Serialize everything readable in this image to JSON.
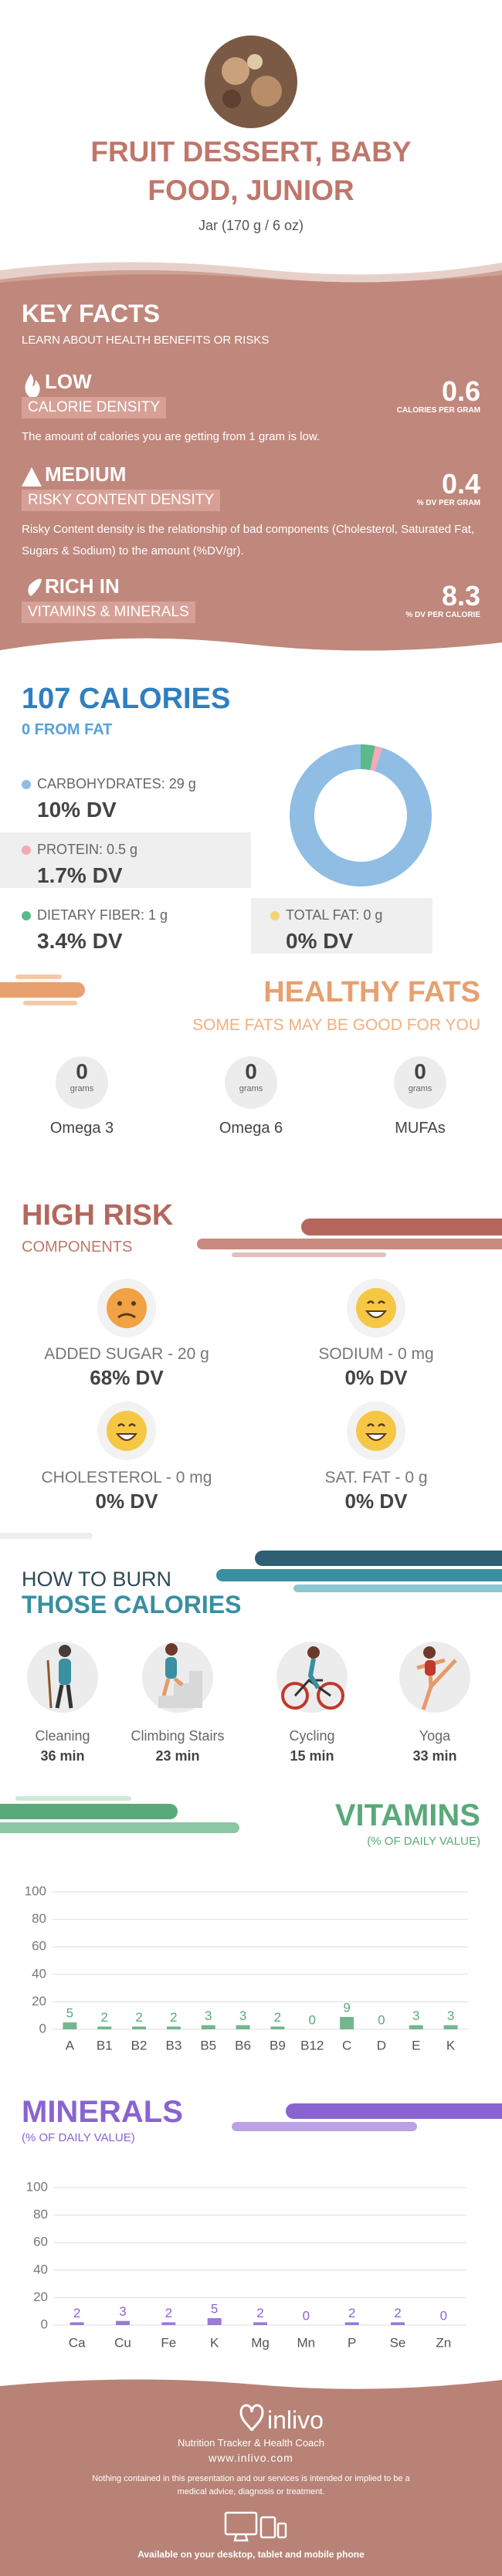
{
  "header": {
    "title": "FRUIT DESSERT, BABY FOOD, JUNIOR",
    "subtitle": "Jar (170 g / 6 oz)"
  },
  "key_facts": {
    "title": "KEY FACTS",
    "subtitle": "LEARN ABOUT HEALTH BENEFITS OR RISKS",
    "items": [
      {
        "level": "LOW",
        "label": "CALORIE DENSITY",
        "value": 0.6,
        "unit": "CALORIES PER GRAM",
        "description": "The amount of calories you are getting from 1 gram is low."
      },
      {
        "level": "MEDIUM",
        "label": "RISKY CONTENT DENSITY",
        "value": 0.4,
        "unit": "% DV PER GRAM",
        "description": "Risky Content density is the relationship of bad components (Cholesterol, Saturated Fat, Sugars & Sodium) to the amount (%DV/gr)."
      },
      {
        "level": "RICH IN",
        "label": "VITAMINS & MINERALS",
        "value": 8.3,
        "unit": "% DV PER CALORIE"
      }
    ]
  },
  "calories": {
    "title": "107 CALORIES",
    "subtitle": "0 FROM FAT",
    "nutrients": [
      {
        "label": "CARBOHYDRATES: 29 g",
        "dv": "10% DV",
        "color": "#8fbde3"
      },
      {
        "label": "PROTEIN: 0.5 g",
        "dv": "1.7% DV",
        "color": "#f4a9b6"
      },
      {
        "label": "DIETARY FIBER: 1 g",
        "dv": "3.4% DV",
        "color": "#5bb98a"
      },
      {
        "label": "TOTAL FAT: 0 g",
        "dv": "0% DV",
        "color": "#f5d27a"
      }
    ]
  },
  "healthy_fats": {
    "title": "HEALTHY FATS",
    "subtitle": "SOME FATS MAY BE GOOD FOR YOU",
    "items": [
      {
        "value": 0,
        "unit": "grams",
        "name": "Omega 3"
      },
      {
        "value": 0,
        "unit": "grams",
        "name": "Omega 6"
      },
      {
        "value": 0,
        "unit": "grams",
        "name": "MUFAs"
      }
    ]
  },
  "high_risk": {
    "title": "HIGH RISK",
    "subtitle": "COMPONENTS",
    "items": [
      {
        "label": "ADDED SUGAR - 20 g",
        "dv": "68% DV"
      },
      {
        "label": "SODIUM - 0 mg",
        "dv": "0% DV"
      },
      {
        "label": "CHOLESTEROL - 0 mg",
        "dv": "0% DV"
      },
      {
        "label": "SAT. FAT - 0 g",
        "dv": "0% DV"
      }
    ]
  },
  "burn": {
    "title_line1": "HOW TO BURN",
    "title_line2": "THOSE CALORIES",
    "activities": [
      {
        "name": "Cleaning",
        "time": "36 min"
      },
      {
        "name": "Climbing Stairs",
        "time": "23 min"
      },
      {
        "name": "Cycling",
        "time": "15 min"
      },
      {
        "name": "Yoga",
        "time": "33 min"
      }
    ]
  },
  "chart_data": [
    {
      "type": "pie",
      "values": [
        29,
        0.5,
        1
      ],
      "colors": [
        "#8fbde3",
        "#f4a9b6",
        "#5bb98a"
      ]
    },
    {
      "type": "bar",
      "title": "VITAMINS",
      "subtitle": "(% OF DAILY VALUE)",
      "categories": [
        "A",
        "B1",
        "B2",
        "B3",
        "B5",
        "B6",
        "B9",
        "B12",
        "C",
        "D",
        "E",
        "K"
      ],
      "values": [
        5,
        2,
        2,
        2,
        3,
        3,
        2,
        0,
        9,
        0,
        3,
        3
      ],
      "color": "#5aa97a",
      "ylim": [
        0,
        100
      ],
      "yticks": [
        0,
        20,
        40,
        60,
        80,
        100
      ],
      "grid": true
    },
    {
      "type": "bar",
      "title": "MINERALS",
      "subtitle": "(% OF DAILY VALUE)",
      "categories": [
        "Ca",
        "Cu",
        "Fe",
        "K",
        "Mg",
        "Mn",
        "P",
        "Se",
        "Zn"
      ],
      "values": [
        2,
        3,
        2,
        5,
        2,
        0,
        2,
        2,
        0
      ],
      "color": "#8a63d2",
      "ylim": [
        0,
        100
      ],
      "yticks": [
        0,
        20,
        40,
        60,
        80,
        100
      ],
      "grid": true
    }
  ],
  "footer": {
    "brand": "inlivo",
    "tagline": "Nutrition Tracker & Health Coach",
    "url": "www.inlivo.com",
    "disclaimer": "Nothing contained in this presentation and our services is intended or implied to be a medical advice, diagnosis or treatment.",
    "availability": "Available on your desktop, tablet and mobile phone"
  }
}
